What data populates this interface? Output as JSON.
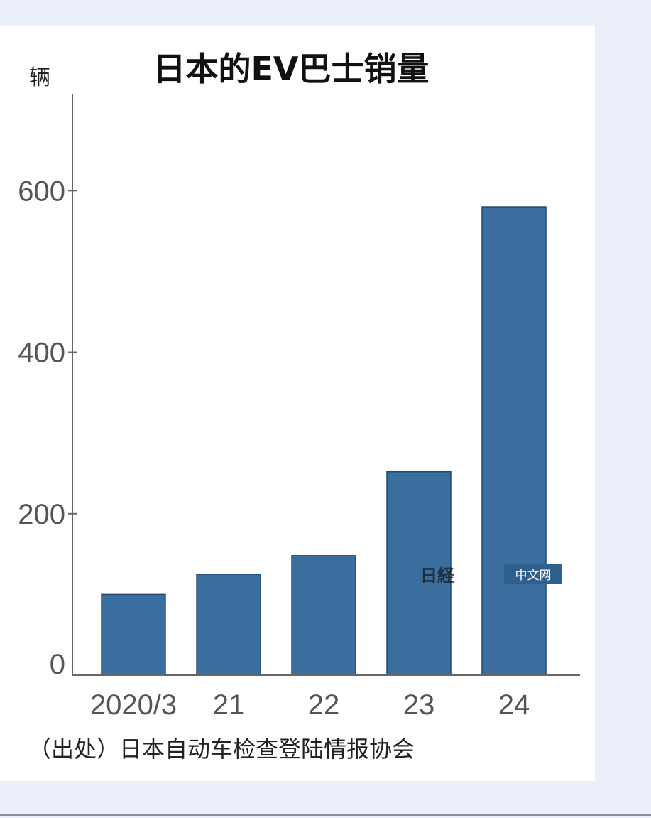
{
  "chart_data": {
    "type": "bar",
    "title": "日本的EV巴士销量",
    "ylabel": "辆",
    "categories": [
      "2020/3",
      "21",
      "22",
      "23",
      "24"
    ],
    "values": [
      100,
      125,
      148,
      252,
      580
    ],
    "yticks": [
      0,
      200,
      400,
      600
    ],
    "ylim": [
      0,
      720
    ],
    "grid": false,
    "bar_color": "#3a6e9f",
    "source": "（出处）日本自动车检查登陆情报协会"
  },
  "watermark": {
    "label": "中文网",
    "logo_text": "日経",
    "bg_color": "#2f5f8c"
  },
  "colors": {
    "page_bg": "#e9eef8",
    "card_bg": "#ffffff",
    "axis": "#666666"
  }
}
